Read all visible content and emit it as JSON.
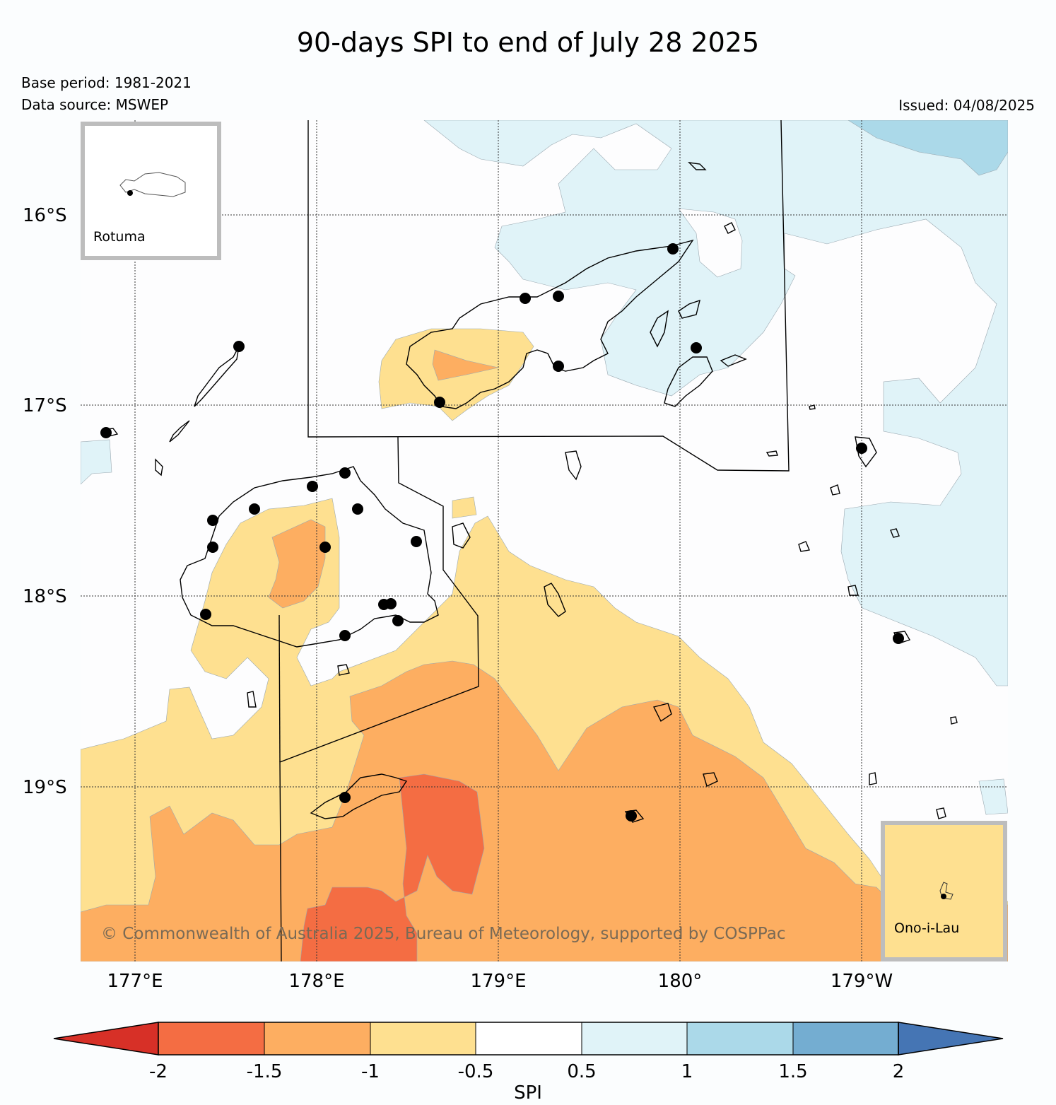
{
  "title": "90-days SPI to end of July 28 2025",
  "base_period": "Base period: 1981-2021",
  "data_source": "Data source: MSWEP",
  "issued": "Issued: 04/08/2025",
  "copyright": "© Commonwealth of Australia 2025, Bureau of Meteorology, supported by COSPPac",
  "insets": {
    "rotuma": "Rotuma",
    "ono_i_lau": "Ono-i-Lau"
  },
  "axes": {
    "lat_labels": [
      "16°S",
      "17°S",
      "18°S",
      "19°S"
    ],
    "lon_labels": [
      "177°E",
      "178°E",
      "179°E",
      "180°",
      "179°W"
    ]
  },
  "colorbar": {
    "label": "SPI",
    "ticks": [
      "-2",
      "-1.5",
      "-1",
      "-0.5",
      "0.5",
      "1",
      "1.5",
      "2"
    ],
    "colors": {
      "below_-2": "#d73027",
      "-2_-1.5": "#f46d43",
      "-1.5_-1": "#fdae61",
      "-1_-0.5": "#fee090",
      "-0.5_0.5": "#ffffff",
      "0.5_1": "#e0f3f8",
      "1_1.5": "#abd9e9",
      "1.5_2": "#74add1",
      "above_2": "#4575b4"
    }
  }
}
